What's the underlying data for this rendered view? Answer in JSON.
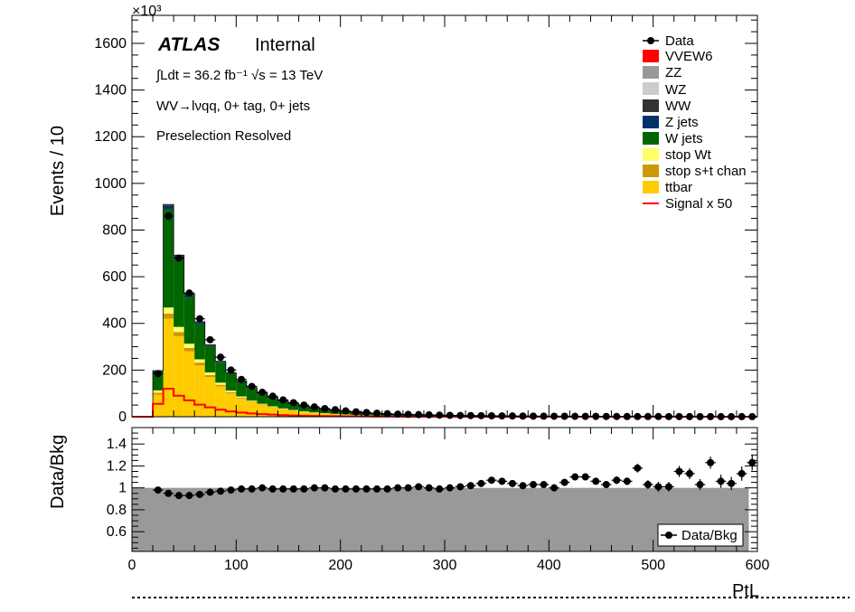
{
  "chart_data": [
    {
      "type": "bar",
      "stacked": true,
      "xlabel": "PtL",
      "ylabel": "Events / 10",
      "y_multiplier_label": "×10³",
      "xlim": [
        0,
        600
      ],
      "ylim": [
        0,
        1720
      ],
      "yticks": [
        0,
        200,
        400,
        600,
        800,
        1000,
        1200,
        1400,
        1600
      ],
      "bin_width": 10,
      "bin_starts": [
        20,
        30,
        40,
        50,
        60,
        70,
        80,
        90,
        100,
        110,
        120,
        130,
        140,
        150,
        160,
        170,
        180,
        190,
        200,
        210,
        220,
        230,
        240,
        250,
        260,
        270,
        280,
        290,
        300,
        310,
        320,
        330,
        340,
        350,
        360,
        370,
        380,
        390,
        400,
        410,
        420,
        430,
        440,
        450,
        460,
        470,
        480,
        490,
        500,
        510,
        520,
        530,
        540,
        550,
        560,
        570,
        580,
        590
      ],
      "series": [
        {
          "name": "ttbar",
          "color": "#ffcc00",
          "values": [
            95,
            420,
            345,
            280,
            220,
            170,
            130,
            100,
            78,
            62,
            50,
            40,
            32,
            26,
            21,
            17,
            14,
            11,
            9,
            7,
            6,
            5,
            4,
            3.5,
            3,
            2.5,
            2,
            1.8,
            1.5,
            1.3,
            1.1,
            1,
            0.8,
            0.7,
            0.6,
            0.5,
            0.5,
            0.4,
            0.4,
            0.3,
            0.3,
            0.3,
            0.2,
            0.2,
            0.2,
            0.2,
            0.1,
            0.1,
            0.1,
            0.1,
            0.1,
            0.1,
            0.1,
            0.1,
            0.1,
            0.1,
            0.1,
            0.1
          ]
        },
        {
          "name": "stop s+t chan",
          "color": "#cc9900",
          "values": [
            8,
            22,
            18,
            15,
            12,
            9,
            7,
            5,
            4,
            3,
            2.5,
            2,
            1.6,
            1.3,
            1,
            0.8,
            0.6,
            0.5,
            0.4,
            0.3,
            0.3,
            0.2,
            0.2,
            0.2,
            0.1,
            0.1,
            0.1,
            0.1,
            0.1,
            0.1,
            0.1,
            0.1,
            0,
            0,
            0,
            0,
            0,
            0,
            0,
            0,
            0,
            0,
            0,
            0,
            0,
            0,
            0,
            0,
            0,
            0,
            0,
            0,
            0,
            0,
            0,
            0,
            0,
            0
          ]
        },
        {
          "name": "stop Wt",
          "color": "#ffff66",
          "values": [
            10,
            26,
            22,
            18,
            14,
            11,
            9,
            7,
            5,
            4,
            3,
            2.5,
            2,
            1.6,
            1.3,
            1,
            0.8,
            0.6,
            0.5,
            0.4,
            0.3,
            0.3,
            0.2,
            0.2,
            0.2,
            0.1,
            0.1,
            0.1,
            0.1,
            0.1,
            0.1,
            0.1,
            0,
            0,
            0,
            0,
            0,
            0,
            0,
            0,
            0,
            0,
            0,
            0,
            0,
            0,
            0,
            0,
            0,
            0,
            0,
            0,
            0,
            0,
            0,
            0,
            0,
            0
          ]
        },
        {
          "name": "W jets",
          "color": "#006600",
          "values": [
            77,
            420,
            290,
            200,
            150,
            110,
            85,
            72,
            62,
            52,
            43,
            36,
            30,
            25,
            21,
            18,
            15,
            13,
            11,
            9.5,
            8,
            7,
            6,
            5,
            4.5,
            4,
            3.5,
            3,
            2.7,
            2.4,
            2.1,
            1.9,
            1.6,
            1.4,
            1.3,
            1.2,
            1.1,
            1,
            0.9,
            0.8,
            0.7,
            0.6,
            0.6,
            0.5,
            0.5,
            0.4,
            0.4,
            0.4,
            0.3,
            0.3,
            0.3,
            0.3,
            0.2,
            0.2,
            0.2,
            0.2,
            0.2,
            0.2
          ]
        },
        {
          "name": "Z jets",
          "color": "#003366",
          "values": [
            5,
            15,
            12,
            9,
            7,
            5,
            4,
            3,
            2.5,
            2,
            1.6,
            1.3,
            1,
            0.8,
            0.7,
            0.6,
            0.5,
            0.4,
            0.3,
            0.3,
            0.2,
            0.2,
            0.2,
            0.1,
            0.1,
            0.1,
            0.1,
            0.1,
            0.1,
            0.1,
            0.1,
            0.1,
            0,
            0,
            0,
            0,
            0,
            0,
            0,
            0,
            0,
            0,
            0,
            0,
            0,
            0,
            0,
            0,
            0,
            0,
            0,
            0,
            0,
            0,
            0,
            0,
            0,
            0
          ]
        },
        {
          "name": "WW",
          "color": "#333333",
          "values": [
            2,
            5,
            4,
            3.5,
            3,
            2.5,
            2,
            1.7,
            1.4,
            1.2,
            1,
            0.9,
            0.8,
            0.7,
            0.6,
            0.5,
            0.4,
            0.4,
            0.3,
            0.3,
            0.2,
            0.2,
            0.2,
            0.2,
            0.1,
            0.1,
            0.1,
            0.1,
            0.1,
            0.1,
            0.1,
            0.1,
            0,
            0,
            0,
            0,
            0,
            0,
            0,
            0,
            0,
            0,
            0,
            0,
            0,
            0,
            0,
            0,
            0,
            0,
            0,
            0,
            0,
            0,
            0,
            0,
            0,
            0
          ]
        },
        {
          "name": "WZ",
          "color": "#cccccc",
          "values": [
            0.5,
            1.5,
            1.2,
            1,
            0.8,
            0.7,
            0.6,
            0.5,
            0.4,
            0.4,
            0.3,
            0.3,
            0.2,
            0.2,
            0.2,
            0.2,
            0.1,
            0.1,
            0.1,
            0.1,
            0.1,
            0.1,
            0,
            0,
            0,
            0,
            0,
            0,
            0,
            0,
            0,
            0,
            0,
            0,
            0,
            0,
            0,
            0,
            0,
            0,
            0,
            0,
            0,
            0,
            0,
            0,
            0,
            0,
            0,
            0,
            0,
            0,
            0,
            0,
            0,
            0,
            0,
            0
          ]
        },
        {
          "name": "ZZ",
          "color": "#999999",
          "values": [
            0.1,
            0.3,
            0.2,
            0.2,
            0.2,
            0.1,
            0.1,
            0.1,
            0.1,
            0.1,
            0,
            0,
            0,
            0,
            0,
            0,
            0,
            0,
            0,
            0,
            0,
            0,
            0,
            0,
            0,
            0,
            0,
            0,
            0,
            0,
            0,
            0,
            0,
            0,
            0,
            0,
            0,
            0,
            0,
            0,
            0,
            0,
            0,
            0,
            0,
            0,
            0,
            0,
            0,
            0,
            0,
            0,
            0,
            0,
            0,
            0,
            0,
            0
          ]
        },
        {
          "name": "VVEW6",
          "color": "#ff0000",
          "values": [
            0,
            0.1,
            0.1,
            0.1,
            0.1,
            0.1,
            0,
            0,
            0,
            0,
            0,
            0,
            0,
            0,
            0,
            0,
            0,
            0,
            0,
            0,
            0,
            0,
            0,
            0,
            0,
            0,
            0,
            0,
            0,
            0,
            0,
            0,
            0,
            0,
            0,
            0,
            0,
            0,
            0,
            0,
            0,
            0,
            0,
            0,
            0,
            0,
            0,
            0,
            0,
            0,
            0,
            0,
            0,
            0,
            0,
            0,
            0,
            0
          ]
        }
      ],
      "data_points": {
        "name": "Data",
        "values": [
          185,
          860,
          680,
          530,
          420,
          330,
          255,
          200,
          160,
          130,
          105,
          88,
          72,
          60,
          50,
          42,
          35,
          30,
          25,
          21,
          18,
          15,
          13,
          11,
          10,
          9,
          8,
          7,
          6,
          5.5,
          5,
          4.5,
          4,
          3.6,
          3.2,
          2.9,
          2.6,
          2.3,
          2.1,
          1.9,
          1.7,
          1.5,
          1.4,
          1.2,
          1.1,
          1,
          0.9,
          0.8,
          0.8,
          0.7,
          0.6,
          0.6,
          0.5,
          0.5,
          0.4,
          0.4,
          0.4,
          0.3
        ]
      },
      "signal": {
        "name": "Signal x 50",
        "color": "#ff0000",
        "values": [
          55,
          120,
          90,
          70,
          52,
          40,
          30,
          23,
          18,
          14,
          11,
          9,
          7,
          5.5,
          4.5,
          3.6,
          3,
          2.5,
          2,
          1.7,
          1.4,
          1.2,
          1,
          0.8,
          0.7,
          0.6,
          0.5,
          0.4,
          0.4,
          0.3,
          0.3,
          0.2,
          0.2,
          0.2,
          0.2,
          0.1,
          0.1,
          0.1,
          0.1,
          0.1,
          0.1,
          0.1,
          0.1,
          0,
          0,
          0,
          0,
          0,
          0,
          0,
          0,
          0,
          0,
          0,
          0,
          0,
          0,
          0
        ]
      },
      "legend_entries": [
        "Data",
        "VVEW6",
        "ZZ",
        "WZ",
        "WW",
        "Z jets",
        "W jets",
        "stop Wt",
        "stop s+t chan",
        "ttbar",
        "Signal x 50"
      ],
      "legend_placement": "top-right",
      "annotations": {
        "atlas": "ATLAS",
        "internal": "Internal",
        "lumi": "∫Ldt = 36.2 fb⁻¹   √s = 13 TeV",
        "channel": "WV→lνqq, 0+ tag, 0+ jets",
        "region": "Preselection Resolved"
      }
    },
    {
      "type": "scatter",
      "ylabel": "Data/Bkg",
      "xlabel": "PtL",
      "xlim": [
        0,
        600
      ],
      "ylim": [
        0.42,
        1.55
      ],
      "yticks": [
        0.6,
        0.8,
        1,
        1.2,
        1.4
      ],
      "xticks": [
        0,
        100,
        200,
        300,
        400,
        500,
        600
      ],
      "band": {
        "lower": 0.42,
        "upper": 1.0,
        "color": "#999999"
      },
      "series": [
        {
          "name": "Data/Bkg",
          "x": [
            25,
            35,
            45,
            55,
            65,
            75,
            85,
            95,
            105,
            115,
            125,
            135,
            145,
            155,
            165,
            175,
            185,
            195,
            205,
            215,
            225,
            235,
            245,
            255,
            265,
            275,
            285,
            295,
            305,
            315,
            325,
            335,
            345,
            355,
            365,
            375,
            385,
            395,
            405,
            415,
            425,
            435,
            445,
            455,
            465,
            475,
            485,
            495,
            505,
            515,
            525,
            535,
            545,
            555,
            565,
            575,
            585,
            595
          ],
          "y": [
            0.98,
            0.95,
            0.93,
            0.93,
            0.94,
            0.96,
            0.97,
            0.98,
            0.99,
            0.99,
            1.0,
            0.99,
            0.99,
            0.99,
            0.99,
            1.0,
            1.0,
            0.99,
            0.99,
            0.99,
            0.99,
            0.99,
            0.99,
            1.0,
            1.0,
            1.01,
            1.0,
            0.99,
            1.0,
            1.01,
            1.02,
            1.04,
            1.07,
            1.06,
            1.04,
            1.02,
            1.03,
            1.03,
            1.0,
            1.05,
            1.1,
            1.1,
            1.06,
            1.03,
            1.07,
            1.06,
            1.18,
            1.03,
            1.01,
            1.01,
            1.15,
            1.13,
            1.03,
            1.23,
            1.06,
            1.04,
            1.13,
            1.23
          ],
          "err": [
            0.01,
            0.01,
            0.01,
            0.01,
            0.01,
            0.01,
            0.01,
            0.01,
            0.01,
            0.01,
            0.01,
            0.01,
            0.01,
            0.01,
            0.01,
            0.01,
            0.01,
            0.01,
            0.01,
            0.01,
            0.01,
            0.01,
            0.01,
            0.01,
            0.01,
            0.01,
            0.01,
            0.01,
            0.01,
            0.015,
            0.015,
            0.015,
            0.015,
            0.015,
            0.02,
            0.02,
            0.02,
            0.02,
            0.02,
            0.025,
            0.025,
            0.03,
            0.03,
            0.03,
            0.035,
            0.035,
            0.04,
            0.04,
            0.045,
            0.045,
            0.05,
            0.05,
            0.05,
            0.055,
            0.06,
            0.06,
            0.065,
            0.07
          ]
        }
      ],
      "legend_entries": [
        "Data/Bkg"
      ],
      "legend_placement": "bottom-right"
    }
  ]
}
